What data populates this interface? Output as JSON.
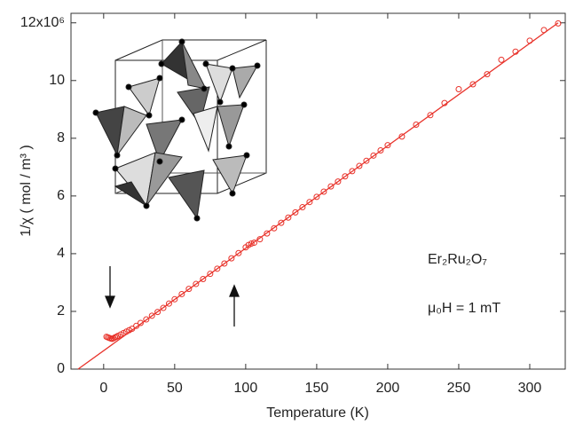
{
  "chart_data": {
    "type": "scatter",
    "xlabel": "Temperature (K)",
    "ylabel": "1/χ ( mol / m³ )",
    "xlim": [
      -23,
      325
    ],
    "ylim": [
      0,
      12.33
    ],
    "xticks": [
      0,
      50,
      100,
      150,
      200,
      250,
      300
    ],
    "yticks": [
      0,
      2,
      4,
      6,
      8,
      10,
      {
        "value": 12,
        "label": "12x10⁶"
      }
    ],
    "annotations": [
      "Er₂Ru₂O₇",
      "μ₀H = 1 mT"
    ],
    "series": [
      {
        "type": "scatter",
        "color": "#e8322a",
        "x": [
          2,
          3,
          4,
          5,
          6,
          7,
          8,
          9,
          10,
          12,
          14,
          16,
          18,
          20,
          23,
          26,
          30,
          34,
          38,
          42,
          46,
          50,
          55,
          60,
          65,
          70,
          75,
          80,
          85,
          90,
          95,
          100,
          102,
          104,
          106,
          110,
          115,
          120,
          125,
          130,
          135,
          140,
          145,
          150,
          155,
          160,
          165,
          170,
          175,
          180,
          185,
          190,
          195,
          200,
          210,
          220,
          230,
          240,
          250,
          260,
          270,
          280,
          290,
          300,
          310,
          320
        ],
        "values": [
          1.12,
          1.1,
          1.08,
          1.06,
          1.05,
          1.07,
          1.1,
          1.12,
          1.15,
          1.2,
          1.25,
          1.3,
          1.35,
          1.4,
          1.5,
          1.6,
          1.72,
          1.85,
          1.98,
          2.12,
          2.27,
          2.42,
          2.6,
          2.78,
          2.95,
          3.12,
          3.3,
          3.48,
          3.66,
          3.84,
          4.02,
          4.22,
          4.3,
          4.35,
          4.38,
          4.5,
          4.7,
          4.88,
          5.07,
          5.25,
          5.43,
          5.61,
          5.79,
          5.97,
          6.15,
          6.33,
          6.5,
          6.68,
          6.86,
          7.04,
          7.22,
          7.4,
          7.58,
          7.76,
          8.06,
          8.47,
          8.8,
          9.22,
          9.7,
          9.87,
          10.22,
          10.72,
          11.0,
          11.38,
          11.75,
          11.98
        ]
      },
      {
        "type": "line",
        "color": "#e8322a",
        "x": [
          -18,
          320
        ],
        "values": [
          0,
          12.0
        ]
      }
    ]
  }
}
